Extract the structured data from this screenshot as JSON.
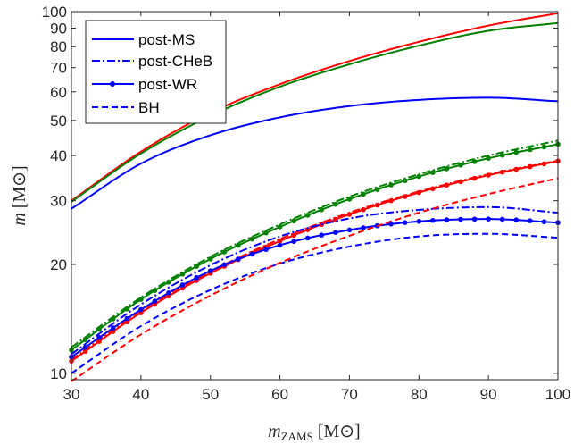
{
  "chart_data": {
    "type": "line",
    "xlabel": "m_ZAMS [M⊙]",
    "xlabel_main": "m",
    "xlabel_sub": "ZAMS",
    "xlabel_unit": "[M⊙]",
    "ylabel": "m [M⊙]",
    "ylabel_main": "m",
    "ylabel_unit": "[M⊙]",
    "xscale": "linear",
    "yscale": "log",
    "xlim": [
      30,
      100
    ],
    "ylim": [
      9.6,
      100
    ],
    "xticks": [
      30,
      40,
      50,
      60,
      70,
      80,
      90,
      100
    ],
    "xtick_labels": [
      "30",
      "40",
      "50",
      "60",
      "70",
      "80",
      "90",
      "100"
    ],
    "yticks": [
      10,
      20,
      30,
      40,
      50,
      60,
      70,
      80,
      90,
      100
    ],
    "ytick_labels": [
      "10",
      "20",
      "30",
      "40",
      "50",
      "60",
      "70",
      "80",
      "90",
      "100"
    ],
    "legend": {
      "position": "top-left",
      "entries": [
        {
          "label": "post-MS",
          "style": "solid"
        },
        {
          "label": "post-CHeB",
          "style": "dashdot"
        },
        {
          "label": "post-WR",
          "style": "solid-dots"
        },
        {
          "label": "BH",
          "style": "dashed"
        }
      ]
    },
    "x": [
      30,
      40,
      50,
      60,
      70,
      80,
      90,
      100
    ],
    "series": [
      {
        "name": "post-MS",
        "group": "red",
        "color": "#ff0000",
        "style": "solid",
        "values": [
          30.0,
          41.0,
          52.5,
          63.0,
          73.0,
          82.5,
          91.5,
          99.0
        ]
      },
      {
        "name": "post-MS",
        "group": "green",
        "color": "#008000",
        "style": "solid",
        "values": [
          29.8,
          40.5,
          51.5,
          62.0,
          71.5,
          80.5,
          88.5,
          93.0
        ]
      },
      {
        "name": "post-MS",
        "group": "blue",
        "color": "#0000ff",
        "style": "solid",
        "values": [
          28.5,
          38.0,
          45.5,
          51.0,
          54.8,
          57.0,
          57.8,
          56.5
        ]
      },
      {
        "name": "post-CHeB",
        "group": "green",
        "color": "#008000",
        "style": "dashdot",
        "values": [
          11.8,
          16.2,
          21.0,
          25.8,
          30.8,
          35.5,
          40.0,
          44.0
        ]
      },
      {
        "name": "post-WR",
        "group": "green",
        "color": "#008000",
        "style": "solid-dots",
        "values": [
          11.6,
          16.0,
          20.7,
          25.4,
          30.3,
          35.0,
          39.3,
          43.0
        ]
      },
      {
        "name": "post-CHeB",
        "group": "red",
        "color": "#ff0000",
        "style": "dashdot",
        "values": [
          10.9,
          14.9,
          19.1,
          23.5,
          27.8,
          31.8,
          35.5,
          38.7
        ]
      },
      {
        "name": "post-WR",
        "group": "red",
        "color": "#ff0000",
        "style": "solid-dots",
        "values": [
          10.8,
          14.7,
          18.9,
          23.2,
          27.5,
          31.6,
          35.3,
          38.6
        ]
      },
      {
        "name": "post-CHeB",
        "group": "blue",
        "color": "#0000ff",
        "style": "dashdot",
        "values": [
          11.3,
          15.5,
          19.9,
          23.9,
          26.8,
          28.3,
          28.8,
          27.8
        ]
      },
      {
        "name": "post-WR",
        "group": "blue",
        "color": "#0000ff",
        "style": "solid-dots",
        "values": [
          11.1,
          15.0,
          19.2,
          22.6,
          24.9,
          26.3,
          26.7,
          26.1
        ]
      },
      {
        "name": "BH",
        "group": "blue",
        "color": "#0000ff",
        "style": "dashed",
        "values": [
          10.0,
          13.5,
          17.0,
          20.1,
          22.4,
          23.9,
          24.3,
          23.7
        ]
      },
      {
        "name": "BH",
        "group": "red",
        "color": "#ff0000",
        "style": "dashed",
        "values": [
          9.5,
          12.8,
          16.4,
          20.2,
          24.0,
          27.8,
          31.3,
          34.6
        ]
      }
    ]
  }
}
